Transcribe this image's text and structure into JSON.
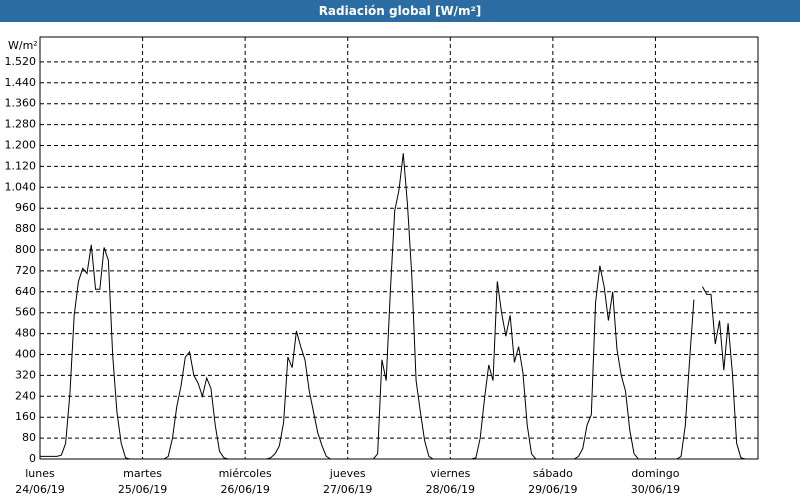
{
  "chart_data": {
    "type": "line",
    "title": "Radiación global [W/m²]",
    "y_unit": "W/m²",
    "ylim": [
      0,
      1600
    ],
    "xlim": [
      0,
      168
    ],
    "yticks": [
      0,
      80,
      160,
      240,
      320,
      400,
      480,
      560,
      640,
      720,
      800,
      880,
      960,
      {
        "value": 1040,
        "label": "1.040"
      },
      {
        "value": 1120,
        "label": "1.120"
      },
      {
        "value": 1200,
        "label": "1.200"
      },
      {
        "value": 1280,
        "label": "1.280"
      },
      {
        "value": 1360,
        "label": "1.360"
      },
      {
        "value": 1440,
        "label": "1.440"
      },
      {
        "value": 1520,
        "label": "1.520"
      }
    ],
    "xticks": [
      {
        "value": 0,
        "label": "lunes",
        "date": "24/06/19"
      },
      {
        "value": 24,
        "label": "martes",
        "date": "25/06/19"
      },
      {
        "value": 48,
        "label": "miércoles",
        "date": "26/06/19"
      },
      {
        "value": 72,
        "label": "jueves",
        "date": "27/06/19"
      },
      {
        "value": 96,
        "label": "viernes",
        "date": "28/06/19"
      },
      {
        "value": 120,
        "label": "sábado",
        "date": "29/06/19"
      },
      {
        "value": 144,
        "label": "domingo",
        "date": "30/06/19"
      }
    ],
    "grid": true,
    "color": "#000000",
    "values": [
      10,
      10,
      10,
      10,
      10,
      15,
      60,
      250,
      550,
      680,
      730,
      710,
      820,
      650,
      650,
      810,
      760,
      400,
      180,
      60,
      5,
      0,
      0,
      0,
      0,
      0,
      0,
      0,
      0,
      0,
      10,
      80,
      200,
      280,
      390,
      410,
      320,
      290,
      240,
      310,
      270,
      130,
      30,
      5,
      0,
      0,
      0,
      0,
      0,
      0,
      0,
      0,
      0,
      0,
      5,
      20,
      50,
      140,
      390,
      350,
      490,
      430,
      380,
      260,
      180,
      100,
      50,
      10,
      0,
      0,
      0,
      0,
      0,
      0,
      0,
      0,
      0,
      0,
      0,
      20,
      380,
      300,
      650,
      950,
      1030,
      1170,
      970,
      700,
      300,
      180,
      70,
      10,
      0,
      0,
      0,
      0,
      0,
      0,
      0,
      0,
      0,
      0,
      5,
      80,
      230,
      360,
      300,
      680,
      560,
      470,
      550,
      370,
      430,
      330,
      130,
      20,
      0,
      0,
      0,
      0,
      0,
      0,
      0,
      0,
      0,
      0,
      10,
      40,
      130,
      170,
      600,
      740,
      660,
      530,
      640,
      420,
      320,
      260,
      110,
      20,
      0,
      0,
      0,
      0,
      0,
      0,
      0,
      0,
      0,
      0,
      10,
      130,
      380,
      610,
      null,
      660,
      630,
      630,
      440,
      530,
      340,
      520,
      330,
      60,
      5,
      0,
      0,
      0
    ]
  }
}
